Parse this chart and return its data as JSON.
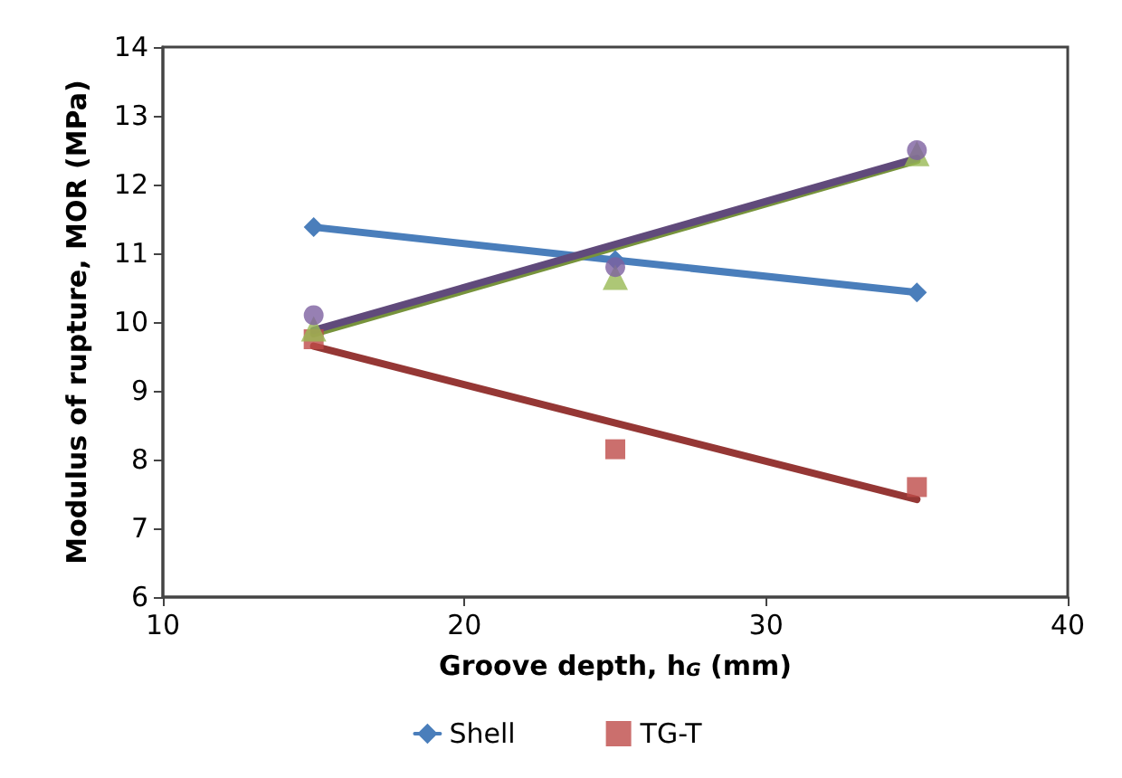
{
  "chart_data": {
    "type": "scatter",
    "xlabel": "Groove depth, h$_{G}$ (mm)",
    "ylabel": "Modulus of rupture, MOR (MPa)",
    "x": [
      15,
      25,
      35
    ],
    "series": [
      {
        "name": "Shell",
        "type": "line",
        "color": "#4a7ebb",
        "marker": "diamond",
        "values": [
          11.38,
          10.9,
          10.43
        ]
      },
      {
        "name": "TG-T",
        "color": "#be4b48",
        "marker": "square",
        "values": [
          9.75,
          8.15,
          7.6
        ]
      },
      {
        "color": "#98b954",
        "marker": "triangle",
        "values": [
          9.9,
          10.65,
          12.45
        ]
      },
      {
        "color": "#7d60a0",
        "marker": "circle",
        "values": [
          10.1,
          10.8,
          12.5
        ]
      },
      {
        "type": "line",
        "color": "#953735",
        "marker": "none",
        "values": [
          9.65,
          8.53,
          7.42
        ]
      },
      {
        "type": "line",
        "color": "#77933c",
        "marker": "none",
        "values": [
          9.83,
          11.09,
          12.35
        ]
      },
      {
        "type": "line",
        "color": "#604a7b",
        "marker": "none",
        "values": [
          9.88,
          11.13,
          12.38
        ]
      }
    ],
    "xlim": [
      10,
      40
    ],
    "xticks": [
      10,
      20,
      30,
      40
    ],
    "ylim": [
      6,
      14
    ],
    "yticks": [
      6,
      7,
      8,
      9,
      10,
      11,
      12,
      13,
      14
    ],
    "grid": false,
    "legend": "bottom"
  }
}
